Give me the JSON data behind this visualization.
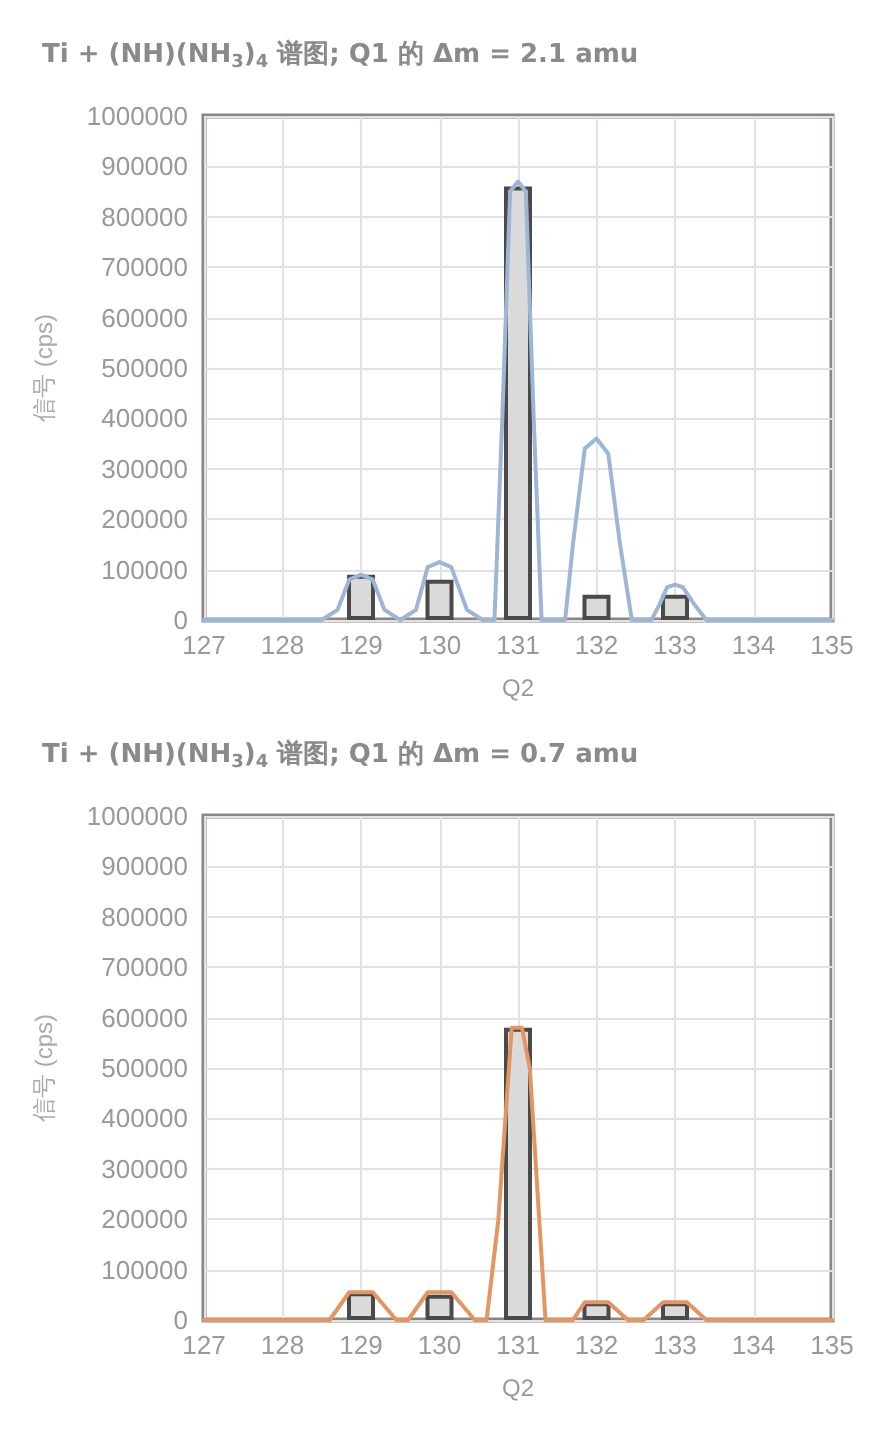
{
  "chart_data": [
    {
      "type": "line",
      "title": "Ti + (NH)(NH$_{3}$)$_{4}$ 谱图; Q1 的 Δm = 2.1 amu",
      "xlabel": "Q2",
      "ylabel": "信号 (cps)",
      "xlim": [
        127,
        135
      ],
      "xticks": [
        127,
        128,
        129,
        130,
        131,
        132,
        133,
        134,
        135
      ],
      "ylim": [
        0,
        1000000
      ],
      "yticks": [
        0,
        100000,
        200000,
        300000,
        400000,
        500000,
        600000,
        700000,
        800000,
        900000,
        1000000
      ],
      "grid": true,
      "marker": "none",
      "line_style": "solid",
      "series": [
        {
          "type": "bar",
          "color": "#dadada",
          "x": [
            129,
            130,
            131,
            132,
            133
          ],
          "values": [
            90000,
            80000,
            860000,
            50000,
            50000
          ]
        },
        {
          "color": "#9db6d6",
          "x": [
            127,
            128.5,
            128.7,
            128.85,
            129,
            129.15,
            129.3,
            129.5,
            129.7,
            129.85,
            130,
            130.15,
            130.35,
            130.55,
            130.7,
            130.8,
            130.9,
            131,
            131.1,
            131.2,
            131.3,
            131.6,
            131.7,
            131.85,
            132,
            132.15,
            132.3,
            132.45,
            132.7,
            132.8,
            132.9,
            133,
            133.1,
            133.25,
            133.4,
            135
          ],
          "values": [
            0,
            0,
            20000,
            80000,
            90000,
            80000,
            20000,
            0,
            20000,
            105000,
            115000,
            105000,
            20000,
            0,
            0,
            400000,
            850000,
            870000,
            850000,
            400000,
            0,
            0,
            150000,
            340000,
            360000,
            330000,
            150000,
            0,
            0,
            30000,
            65000,
            70000,
            65000,
            30000,
            0,
            0
          ]
        }
      ]
    },
    {
      "type": "line",
      "title": "Ti + (NH)(NH$_{3}$)$_{4}$ 谱图; Q1 的 Δm = 0.7 amu",
      "xlabel": "Q2",
      "ylabel": "信号 (cps)",
      "xlim": [
        127,
        135
      ],
      "xticks": [
        127,
        128,
        129,
        130,
        131,
        132,
        133,
        134,
        135
      ],
      "ylim": [
        0,
        1000000
      ],
      "yticks": [
        0,
        100000,
        200000,
        300000,
        400000,
        500000,
        600000,
        700000,
        800000,
        900000,
        1000000
      ],
      "grid": true,
      "marker": "none",
      "line_style": "solid",
      "series": [
        {
          "type": "bar",
          "color": "#dadada",
          "x": [
            129,
            130,
            131,
            132,
            133
          ],
          "values": [
            55000,
            50000,
            580000,
            35000,
            35000
          ]
        },
        {
          "color": "#e39562",
          "x": [
            127,
            128.6,
            128.85,
            129.15,
            129.45,
            129.6,
            129.85,
            130.15,
            130.45,
            130.6,
            130.75,
            130.92,
            131.05,
            131.15,
            131.35,
            131.7,
            131.85,
            132.15,
            132.4,
            132.6,
            132.85,
            133.15,
            133.4,
            135
          ],
          "values": [
            0,
            0,
            55000,
            55000,
            0,
            0,
            55000,
            55000,
            0,
            0,
            200000,
            580000,
            580000,
            500000,
            0,
            0,
            35000,
            35000,
            0,
            0,
            35000,
            35000,
            0,
            0
          ]
        }
      ]
    }
  ]
}
